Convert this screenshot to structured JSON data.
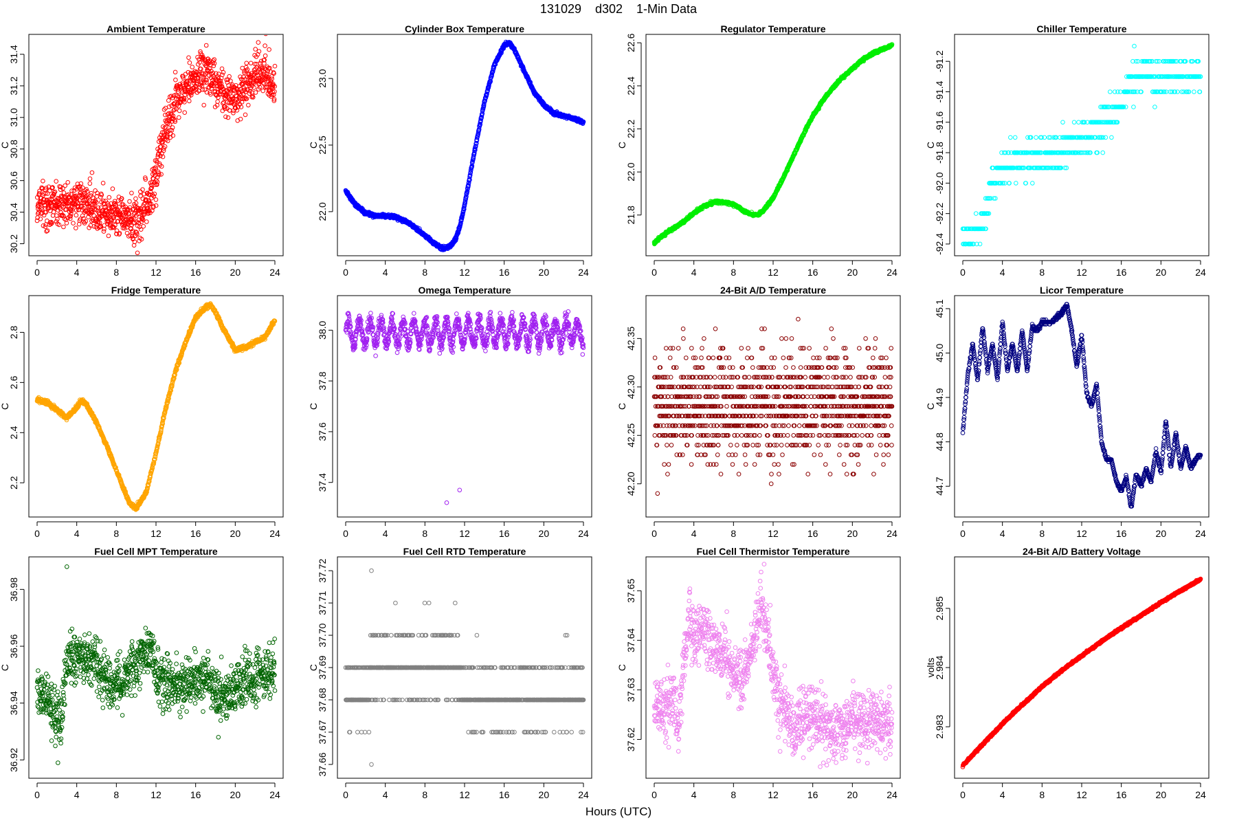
{
  "figure": {
    "title": "131029    d302    1-Min Data",
    "xlabel": "Hours (UTC)"
  },
  "chart_data": [
    {
      "type": "scatter",
      "marker": "open-circle",
      "color": "#ff0000",
      "title": "Ambient Temperature",
      "ylabel": "C",
      "xlim": [
        0,
        24
      ],
      "ylim": [
        30.15,
        31.5
      ],
      "xticks": [
        0,
        4,
        8,
        12,
        16,
        20,
        24
      ],
      "yticks": [
        30.2,
        30.4,
        30.6,
        30.8,
        31.0,
        31.2,
        31.4
      ],
      "ytick_labels": [
        "30.2",
        "30.4",
        "30.6",
        "30.8",
        "31.0",
        "31.2",
        "31.4"
      ],
      "x": [
        0,
        2,
        4,
        6,
        8,
        9,
        10,
        11,
        12,
        12.5,
        13,
        13.5,
        14,
        15,
        16,
        17,
        18,
        19,
        20,
        21,
        22,
        23,
        24
      ],
      "y": [
        30.46,
        30.43,
        30.48,
        30.4,
        30.38,
        30.36,
        30.33,
        30.45,
        30.62,
        30.8,
        30.92,
        31.05,
        31.1,
        31.18,
        31.25,
        31.32,
        31.22,
        31.15,
        31.12,
        31.2,
        31.28,
        31.3,
        31.18
      ],
      "noise": 0.07,
      "n_points": 1200,
      "quantum": 0
    },
    {
      "type": "scatter",
      "marker": "open-circle",
      "color": "#0000ff",
      "title": "Cylinder Box Temperature",
      "ylabel": "C",
      "xlim": [
        0,
        24
      ],
      "ylim": [
        21.7,
        23.3
      ],
      "xticks": [
        0,
        4,
        8,
        12,
        16,
        20,
        24
      ],
      "yticks": [
        22.0,
        22.5,
        23.0
      ],
      "ytick_labels": [
        "22.0",
        "22.5",
        "23.0"
      ],
      "x": [
        0,
        1,
        2,
        3,
        4,
        5,
        6,
        7,
        8,
        9,
        9.8,
        10.5,
        11,
        11.5,
        12,
        13,
        14,
        15,
        16,
        16.5,
        17,
        18,
        19,
        20,
        21,
        22,
        23,
        24
      ],
      "y": [
        22.16,
        22.05,
        21.99,
        21.97,
        21.97,
        21.96,
        21.93,
        21.88,
        21.82,
        21.76,
        21.72,
        21.74,
        21.78,
        21.88,
        22.05,
        22.45,
        22.82,
        23.1,
        23.25,
        23.27,
        23.22,
        23.06,
        22.9,
        22.8,
        22.74,
        22.72,
        22.7,
        22.67
      ],
      "noise": 0.006,
      "n_points": 1200,
      "quantum": 0
    },
    {
      "type": "scatter",
      "marker": "open-circle",
      "color": "#00ee00",
      "title": "Regulator Temperature",
      "ylabel": "C",
      "xlim": [
        0,
        24
      ],
      "ylim": [
        21.63,
        22.62
      ],
      "xticks": [
        0,
        4,
        8,
        12,
        16,
        20,
        24
      ],
      "yticks": [
        21.8,
        22.0,
        22.2,
        22.4,
        22.6
      ],
      "ytick_labels": [
        "21.8",
        "22.0",
        "22.2",
        "22.4",
        "22.6"
      ],
      "x": [
        0,
        1,
        2,
        3,
        4,
        5,
        6,
        7,
        8,
        9,
        10,
        10.5,
        11,
        12,
        13,
        14,
        15,
        16,
        17,
        18,
        19,
        20,
        21,
        22,
        23,
        24
      ],
      "y": [
        21.67,
        21.71,
        21.74,
        21.77,
        21.81,
        21.84,
        21.86,
        21.86,
        21.85,
        21.82,
        21.8,
        21.8,
        21.82,
        21.88,
        21.97,
        22.07,
        22.17,
        22.26,
        22.33,
        22.39,
        22.44,
        22.48,
        22.52,
        22.55,
        22.57,
        22.59
      ],
      "noise": 0.003,
      "n_points": 1200,
      "quantum": 0
    },
    {
      "type": "scatter",
      "marker": "open-circle",
      "color": "#00ffff",
      "title": "Chiller Temperature",
      "ylabel": "C",
      "xlim": [
        0,
        24
      ],
      "ylim": [
        -92.45,
        -91.05
      ],
      "xticks": [
        0,
        4,
        8,
        12,
        16,
        20,
        24
      ],
      "yticks": [
        -92.4,
        -92.2,
        -92.0,
        -91.8,
        -91.6,
        -91.4,
        -91.2
      ],
      "ytick_labels": [
        "-92.4",
        "-92.2",
        "-92.0",
        "-91.8",
        "-91.6",
        "-91.4",
        "-91.2"
      ],
      "x": [
        0,
        1,
        2,
        2.5,
        3,
        4,
        6,
        8,
        10,
        12,
        14,
        16,
        17,
        18,
        20,
        22,
        24
      ],
      "y": [
        -92.3,
        -92.36,
        -92.3,
        -92.15,
        -92.0,
        -91.9,
        -91.86,
        -91.82,
        -91.78,
        -91.72,
        -91.62,
        -91.5,
        -91.33,
        -91.28,
        -91.3,
        -91.28,
        -91.3
      ],
      "noise": 0.06,
      "n_points": 650,
      "quantum": 0.1
    },
    {
      "type": "scatter",
      "marker": "open-circle",
      "color": "#ffa500",
      "title": "Fridge Temperature",
      "ylabel": "C",
      "xlim": [
        0,
        24
      ],
      "ylim": [
        2.08,
        2.93
      ],
      "xticks": [
        0,
        4,
        8,
        12,
        16,
        20,
        24
      ],
      "yticks": [
        2.2,
        2.4,
        2.6,
        2.8
      ],
      "ytick_labels": [
        "2.2",
        "2.4",
        "2.6",
        "2.8"
      ],
      "x": [
        0,
        1,
        2,
        3,
        4,
        4.5,
        5,
        6,
        7,
        8,
        9,
        9.5,
        10,
        11,
        12,
        13,
        14,
        15,
        16,
        17,
        17.5,
        18,
        19,
        20,
        21,
        22,
        23,
        24
      ],
      "y": [
        2.53,
        2.52,
        2.49,
        2.46,
        2.5,
        2.53,
        2.51,
        2.44,
        2.35,
        2.25,
        2.15,
        2.11,
        2.1,
        2.16,
        2.32,
        2.5,
        2.65,
        2.76,
        2.86,
        2.9,
        2.91,
        2.88,
        2.8,
        2.73,
        2.74,
        2.76,
        2.78,
        2.85
      ],
      "noise": 0.004,
      "n_points": 1200,
      "quantum": 0
    },
    {
      "type": "scatter",
      "marker": "open-circle",
      "color": "#a020f0",
      "title": "Omega Temperature",
      "ylabel": "C",
      "xlim": [
        0,
        24
      ],
      "ylim": [
        37.28,
        38.12
      ],
      "xticks": [
        0,
        4,
        8,
        12,
        16,
        20,
        24
      ],
      "yticks": [
        37.4,
        37.6,
        37.8,
        38.0
      ],
      "ytick_labels": [
        "37.4",
        "37.6",
        "37.8",
        "38.0"
      ],
      "x": [
        0,
        24
      ],
      "y": [
        37.99,
        37.99
      ],
      "osc_amp": 0.05,
      "osc_period": 1.1,
      "noise": 0.015,
      "n_points": 1200,
      "quantum": 0,
      "outliers": [
        [
          10.2,
          37.32
        ],
        [
          11.5,
          37.37
        ]
      ]
    },
    {
      "type": "scatter",
      "marker": "open-circle",
      "color": "#8b0000",
      "title": "24-Bit A/D Temperature",
      "ylabel": "C",
      "xlim": [
        0,
        24
      ],
      "ylim": [
        42.17,
        42.39
      ],
      "xticks": [
        0,
        4,
        8,
        12,
        16,
        20,
        24
      ],
      "yticks": [
        42.2,
        42.25,
        42.3,
        42.35
      ],
      "ytick_labels": [
        "42.20",
        "42.25",
        "42.30",
        "42.35"
      ],
      "x": [
        0,
        24
      ],
      "y": [
        42.28,
        42.28
      ],
      "noise": 0.028,
      "n_points": 1300,
      "quantum": 0.01
    },
    {
      "type": "scatter",
      "marker": "open-circle",
      "color": "#000080",
      "title": "Licor Temperature",
      "ylabel": "C",
      "xlim": [
        0,
        24
      ],
      "ylim": [
        44.64,
        45.12
      ],
      "xticks": [
        0,
        4,
        8,
        12,
        16,
        20,
        24
      ],
      "yticks": [
        44.7,
        44.8,
        44.9,
        45.0,
        45.1
      ],
      "ytick_labels": [
        "44.7",
        "44.8",
        "44.9",
        "45.0",
        "45.1"
      ],
      "x": [
        0,
        0.5,
        1,
        1.5,
        2,
        2.5,
        3,
        3.5,
        4,
        4.5,
        5,
        5.5,
        6,
        6.5,
        7,
        7.5,
        8,
        8.5,
        9,
        9.5,
        10,
        10.5,
        11,
        11.5,
        12,
        12.5,
        13,
        13.5,
        14,
        14.5,
        15,
        15.5,
        16,
        16.5,
        17,
        17.5,
        18,
        18.5,
        19,
        19.5,
        20,
        20.5,
        21,
        21.5,
        22,
        22.5,
        23,
        23.5,
        24
      ],
      "y": [
        44.82,
        44.95,
        45.02,
        44.94,
        45.06,
        44.96,
        45.02,
        44.94,
        45.07,
        44.96,
        45.02,
        44.96,
        45.05,
        44.96,
        45.06,
        45.05,
        45.07,
        45.07,
        45.07,
        45.08,
        45.09,
        45.11,
        45.05,
        44.97,
        45.04,
        44.91,
        44.88,
        44.93,
        44.8,
        44.76,
        44.76,
        44.71,
        44.69,
        44.72,
        44.65,
        44.73,
        44.7,
        44.74,
        44.71,
        44.78,
        44.73,
        44.85,
        44.74,
        44.82,
        44.74,
        44.79,
        44.74,
        44.76,
        44.77
      ],
      "noise": 0.002,
      "n_points": 1200,
      "quantum": 0.005
    },
    {
      "type": "scatter",
      "marker": "open-circle",
      "color": "#006400",
      "title": "Fuel Cell MPT Temperature",
      "ylabel": "C",
      "xlim": [
        0,
        24
      ],
      "ylim": [
        36.915,
        36.99
      ],
      "xticks": [
        0,
        4,
        8,
        12,
        16,
        20,
        24
      ],
      "yticks": [
        36.92,
        36.94,
        36.96,
        36.98
      ],
      "ytick_labels": [
        "36.92",
        "36.94",
        "36.96",
        "36.98"
      ],
      "x": [
        0,
        1,
        2,
        2.5,
        3,
        4,
        5,
        6,
        7,
        8,
        9,
        10,
        11,
        11.5,
        12,
        13,
        14,
        16,
        17,
        18,
        19,
        20,
        22,
        24
      ],
      "y": [
        36.946,
        36.941,
        36.936,
        36.935,
        36.955,
        36.958,
        36.955,
        36.953,
        36.948,
        36.946,
        36.95,
        36.952,
        36.958,
        36.96,
        36.948,
        36.947,
        36.946,
        36.948,
        36.95,
        36.944,
        36.942,
        36.946,
        36.95,
        36.951
      ],
      "noise": 0.0045,
      "n_points": 1200,
      "quantum": 0,
      "outliers": [
        [
          3.0,
          36.988
        ],
        [
          2.1,
          36.919
        ],
        [
          18.3,
          36.928
        ]
      ]
    },
    {
      "type": "scatter",
      "marker": "open-circle",
      "color": "#808080",
      "title": "Fuel Cell RTD Temperature",
      "ylabel": "C",
      "xlim": [
        0,
        24
      ],
      "ylim": [
        37.657,
        37.723
      ],
      "xticks": [
        0,
        4,
        8,
        12,
        16,
        20,
        24
      ],
      "yticks": [
        37.66,
        37.67,
        37.68,
        37.69,
        37.7,
        37.71,
        37.72
      ],
      "ytick_labels": [
        "37.66",
        "37.67",
        "37.68",
        "37.69",
        "37.70",
        "37.71",
        "37.72"
      ],
      "x": [
        0,
        2,
        3,
        5,
        8,
        11,
        11.6,
        12,
        16,
        20,
        24
      ],
      "y": [
        37.683,
        37.684,
        37.69,
        37.692,
        37.69,
        37.691,
        37.686,
        37.681,
        37.681,
        37.681,
        37.682
      ],
      "noise": 0.005,
      "n_points": 900,
      "quantum": 0.01,
      "outliers": [
        [
          2.6,
          37.72
        ],
        [
          2.6,
          37.66
        ]
      ]
    },
    {
      "type": "scatter",
      "marker": "open-circle",
      "color": "#ee82ee",
      "title": "Fuel Cell Thermistor Temperature",
      "ylabel": "C",
      "xlim": [
        0,
        24
      ],
      "ylim": [
        37.613,
        37.656
      ],
      "xticks": [
        0,
        4,
        8,
        12,
        16,
        20,
        24
      ],
      "yticks": [
        37.62,
        37.63,
        37.64,
        37.65
      ],
      "ytick_labels": [
        "37.62",
        "37.63",
        "37.64",
        "37.65"
      ],
      "x": [
        0,
        1,
        2,
        2.5,
        3,
        3.5,
        4,
        5,
        6,
        7,
        8,
        9,
        10,
        10.5,
        11,
        11.5,
        12,
        13,
        14,
        15,
        16,
        17,
        18,
        19,
        20,
        21,
        22,
        23,
        24
      ],
      "y": [
        37.627,
        37.626,
        37.628,
        37.622,
        37.636,
        37.645,
        37.641,
        37.643,
        37.64,
        37.638,
        37.633,
        37.632,
        37.64,
        37.644,
        37.646,
        37.64,
        37.632,
        37.627,
        37.623,
        37.624,
        37.624,
        37.623,
        37.621,
        37.622,
        37.624,
        37.623,
        37.624,
        37.623,
        37.623
      ],
      "noise": 0.003,
      "n_points": 1200,
      "quantum": 0
    },
    {
      "type": "scatter",
      "marker": "open-circle",
      "color": "#ff0000",
      "title": "24-Bit A/D Battery Voltage",
      "ylabel": "volts",
      "xlim": [
        0,
        24
      ],
      "ylim": [
        2.9822,
        2.9858
      ],
      "xticks": [
        0,
        4,
        8,
        12,
        16,
        20,
        24
      ],
      "yticks": [
        2.983,
        2.984,
        2.985
      ],
      "ytick_labels": [
        "2.983",
        "2.984",
        "2.985"
      ],
      "x": [
        0,
        2,
        4,
        6,
        8,
        10,
        12,
        14,
        16,
        18,
        20,
        22,
        24
      ],
      "y": [
        2.98235,
        2.9827,
        2.98305,
        2.98337,
        2.98368,
        2.98395,
        2.9842,
        2.98444,
        2.98467,
        2.98488,
        2.9851,
        2.9853,
        2.98549
      ],
      "noise": 8e-06,
      "n_points": 1200,
      "quantum": 0
    }
  ]
}
